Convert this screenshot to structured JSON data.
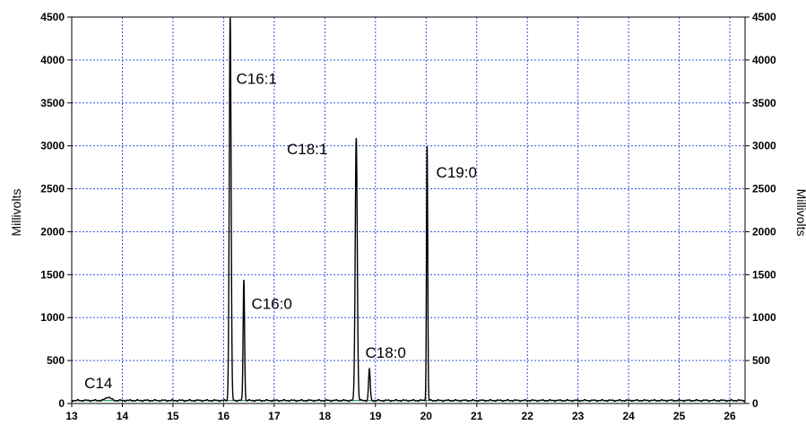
{
  "chart_data": {
    "type": "line",
    "title": "",
    "xlabel": "",
    "ylabel": "Millivolts",
    "ylabel_right": "Millivolts",
    "xlim": [
      13,
      26.3
    ],
    "ylim": [
      0,
      4500
    ],
    "x_ticks": [
      "13",
      "14",
      "15",
      "16",
      "17",
      "18",
      "19",
      "20",
      "21",
      "22",
      "23",
      "24",
      "25",
      "26"
    ],
    "y_ticks": [
      "0",
      "500",
      "1000",
      "1500",
      "2000",
      "2500",
      "3000",
      "3500",
      "4000",
      "4500"
    ],
    "grid": true,
    "colors": {
      "grid": "#1f3fd6",
      "baseline": "#2e9e5a",
      "trace": "#000000",
      "frame": "#000000"
    },
    "baseline_level": 35,
    "peaks": [
      {
        "name": "C14",
        "rt": 13.72,
        "height": 75
      },
      {
        "name": "C16:1",
        "rt": 16.13,
        "height": 4500
      },
      {
        "name": "C16:0",
        "rt": 16.4,
        "height": 1450
      },
      {
        "name": "C18:1",
        "rt": 18.62,
        "height": 3100
      },
      {
        "name": "C18:0",
        "rt": 18.88,
        "height": 400
      },
      {
        "name": "C19:0",
        "rt": 20.02,
        "height": 3000
      }
    ],
    "annotations": [
      {
        "text": "C14",
        "x": 13.25,
        "y": 180
      },
      {
        "text": "C16:1",
        "x": 16.25,
        "y": 3720
      },
      {
        "text": "C16:0",
        "x": 16.55,
        "y": 1100
      },
      {
        "text": "C18:1",
        "x": 17.25,
        "y": 2900
      },
      {
        "text": "C18:0",
        "x": 18.8,
        "y": 530
      },
      {
        "text": "C19:0",
        "x": 20.2,
        "y": 2630
      }
    ]
  }
}
